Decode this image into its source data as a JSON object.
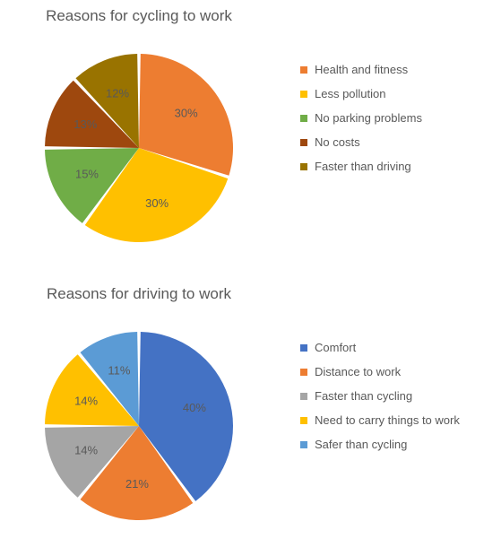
{
  "chart1": {
    "type": "pie",
    "title": "Reasons for cycling to work",
    "title_fontsize": 17,
    "title_color": "#595959",
    "background_color": "#ffffff",
    "label_color": "#595959",
    "label_fontsize": 13,
    "pie_radius": 105,
    "slice_gap": 2,
    "start_angle_deg": -90,
    "slices": [
      {
        "label": "Health and fitness",
        "value": 30,
        "pct": "30%",
        "color": "#ed7d31"
      },
      {
        "label": "Less pollution",
        "value": 30,
        "pct": "30%",
        "color": "#ffc000"
      },
      {
        "label": "No parking problems",
        "value": 15,
        "pct": "15%",
        "color": "#70ad47"
      },
      {
        "label": "No costs",
        "value": 13,
        "pct": "13%",
        "color": "#9e480e"
      },
      {
        "label": "Faster than driving",
        "value": 12,
        "pct": "12%",
        "color": "#997300"
      }
    ]
  },
  "chart2": {
    "type": "pie",
    "title": "Reasons for driving to work",
    "title_fontsize": 17,
    "title_color": "#595959",
    "background_color": "#ffffff",
    "label_color": "#595959",
    "label_fontsize": 13,
    "pie_radius": 105,
    "slice_gap": 2,
    "start_angle_deg": -90,
    "slices": [
      {
        "label": "Comfort",
        "value": 40,
        "pct": "40%",
        "color": "#4472c4"
      },
      {
        "label": "Distance to work",
        "value": 21,
        "pct": "21%",
        "color": "#ed7d31"
      },
      {
        "label": "Faster than cycling",
        "value": 14,
        "pct": "14%",
        "color": "#a5a5a5"
      },
      {
        "label": "Need to carry things to work",
        "value": 14,
        "pct": "14%",
        "color": "#ffc000"
      },
      {
        "label": "Safer than cycling",
        "value": 11,
        "pct": "11%",
        "color": "#5b9bd5"
      }
    ]
  }
}
